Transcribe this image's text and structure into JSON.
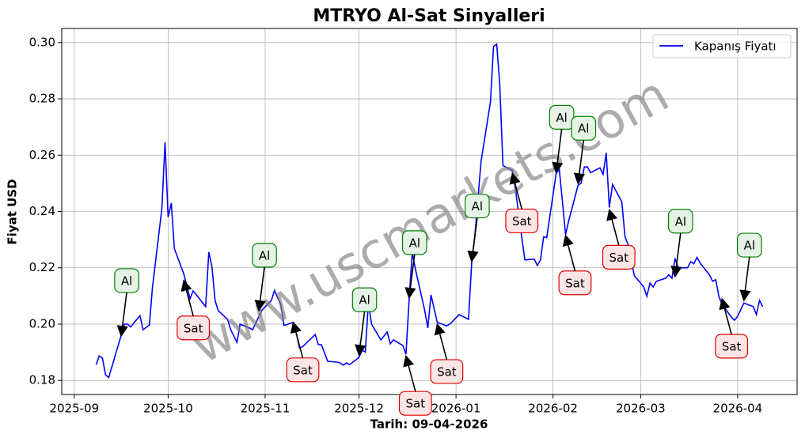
{
  "chart_data": {
    "type": "line",
    "title": "MTRYO Al-Sat Sinyalleri",
    "xlabel": "Tarih: 09-04-2026",
    "ylabel": "Fiyat USD",
    "watermark": "www.uscmarkets.com",
    "grid": true,
    "legend": "upper right",
    "xlim": [
      "2025-08-28",
      "2026-04-20"
    ],
    "ylim": [
      0.175,
      0.305
    ],
    "xticks": [
      {
        "value": "2025-09-01",
        "label": "2025-09"
      },
      {
        "value": "2025-10-01",
        "label": "2025-10"
      },
      {
        "value": "2025-11-01",
        "label": "2025-11"
      },
      {
        "value": "2025-12-01",
        "label": "2025-12"
      },
      {
        "value": "2026-01-01",
        "label": "2026-01"
      },
      {
        "value": "2026-02-01",
        "label": "2026-02"
      },
      {
        "value": "2026-03-01",
        "label": "2026-03"
      },
      {
        "value": "2026-04-01",
        "label": "2026-04"
      }
    ],
    "yticks": [
      0.18,
      {
        "value": 0.2,
        "label": "0.20"
      },
      0.22,
      0.24,
      0.26,
      0.28,
      {
        "value": 0.3,
        "label": "0.30"
      }
    ],
    "x": [
      "2025-09-08",
      "2025-09-09",
      "2025-09-10",
      "2025-09-11",
      "2025-09-12",
      "2025-09-16",
      "2025-09-17",
      "2025-09-18",
      "2025-09-19",
      "2025-09-22",
      "2025-09-23",
      "2025-09-25",
      "2025-09-26",
      "2025-09-29",
      "2025-09-30",
      "2025-10-01",
      "2025-10-02",
      "2025-10-03",
      "2025-10-06",
      "2025-10-07",
      "2025-10-08",
      "2025-10-09",
      "2025-10-10",
      "2025-10-13",
      "2025-10-14",
      "2025-10-15",
      "2025-10-16",
      "2025-10-17",
      "2025-10-20",
      "2025-10-21",
      "2025-10-23",
      "2025-10-24",
      "2025-10-27",
      "2025-10-28",
      "2025-10-31",
      "2025-11-03",
      "2025-11-04",
      "2025-11-05",
      "2025-11-06",
      "2025-11-07",
      "2025-11-10",
      "2025-11-11",
      "2025-11-12",
      "2025-11-13",
      "2025-11-17",
      "2025-11-18",
      "2025-11-19",
      "2025-11-21",
      "2025-11-24",
      "2025-11-25",
      "2025-11-26",
      "2025-11-27",
      "2025-11-28",
      "2025-12-01",
      "2025-12-02",
      "2025-12-03",
      "2025-12-04",
      "2025-12-05",
      "2025-12-08",
      "2025-12-09",
      "2025-12-10",
      "2025-12-11",
      "2025-12-12",
      "2025-12-15",
      "2025-12-16",
      "2025-12-17",
      "2025-12-18",
      "2025-12-19",
      "2025-12-22",
      "2025-12-23",
      "2025-12-24",
      "2025-12-26",
      "2025-12-29",
      "2025-12-30",
      "2026-01-02",
      "2026-01-05",
      "2026-01-06",
      "2026-01-07",
      "2026-01-09",
      "2026-01-12",
      "2026-01-13",
      "2026-01-14",
      "2026-01-15",
      "2026-01-16",
      "2026-01-19",
      "2026-01-20",
      "2026-01-22",
      "2026-01-23",
      "2026-01-26",
      "2026-01-27",
      "2026-01-28",
      "2026-01-29",
      "2026-01-30",
      "2026-02-02",
      "2026-02-03",
      "2026-02-04",
      "2026-02-05",
      "2026-02-06",
      "2026-02-09",
      "2026-02-10",
      "2026-02-11",
      "2026-02-12",
      "2026-02-13",
      "2026-02-16",
      "2026-02-17",
      "2026-02-18",
      "2026-02-19",
      "2026-02-20",
      "2026-02-23",
      "2026-02-24",
      "2026-02-25",
      "2026-02-27",
      "2026-03-02",
      "2026-03-03",
      "2026-03-04",
      "2026-03-05",
      "2026-03-06",
      "2026-03-09",
      "2026-03-10",
      "2026-03-11",
      "2026-03-12",
      "2026-03-13",
      "2026-03-16",
      "2026-03-17",
      "2026-03-18",
      "2026-03-19",
      "2026-03-20",
      "2026-03-23",
      "2026-03-24",
      "2026-03-25",
      "2026-03-26",
      "2026-03-27",
      "2026-03-30",
      "2026-03-31",
      "2026-04-01",
      "2026-04-03",
      "2026-04-06",
      "2026-04-07",
      "2026-04-08",
      "2026-04-09"
    ],
    "series": [
      {
        "name": "Kapanış Fiyatı",
        "color": "#0000ff",
        "values": [
          0.1856,
          0.1887,
          0.188,
          0.182,
          0.181,
          0.196,
          0.2,
          0.2,
          0.199,
          0.203,
          0.198,
          0.1997,
          0.213,
          0.241,
          0.2645,
          0.238,
          0.243,
          0.2268,
          0.2178,
          0.2135,
          0.209,
          0.2118,
          0.2104,
          0.2062,
          0.2256,
          0.2203,
          0.2084,
          0.2048,
          0.2017,
          0.198,
          0.1935,
          0.2,
          0.1986,
          0.198,
          0.205,
          0.2084,
          0.212,
          0.2093,
          0.207,
          0.1995,
          0.2006,
          0.1966,
          0.1915,
          0.192,
          0.1963,
          0.1927,
          0.1927,
          0.1868,
          0.1865,
          0.1862,
          0.1854,
          0.1862,
          0.1856,
          0.1882,
          0.1907,
          0.1901,
          0.2076,
          0.2,
          0.1944,
          0.1958,
          0.1972,
          0.193,
          0.1944,
          0.1924,
          0.1893,
          0.2084,
          0.2254,
          0.2197,
          0.2048,
          0.1986,
          0.2104,
          0.2006,
          0.1994,
          0.2,
          0.2034,
          0.2017,
          0.2217,
          0.231,
          0.2577,
          0.2789,
          0.2986,
          0.2994,
          0.2851,
          0.2563,
          0.2546,
          0.2479,
          0.231,
          0.2228,
          0.2231,
          0.2208,
          0.2228,
          0.231,
          0.2307,
          0.2535,
          0.2549,
          0.2437,
          0.2318,
          0.2366,
          0.2493,
          0.2501,
          0.2558,
          0.2558,
          0.2538,
          0.2555,
          0.2532,
          0.2608,
          0.2414,
          0.2496,
          0.2434,
          0.231,
          0.2282,
          0.2172,
          0.2132,
          0.2099,
          0.2146,
          0.2132,
          0.2152,
          0.2163,
          0.2175,
          0.2163,
          0.2234,
          0.22,
          0.22,
          0.2222,
          0.2214,
          0.2237,
          0.2217,
          0.2175,
          0.2152,
          0.2158,
          0.2099,
          0.207,
          0.2025,
          0.2014,
          0.2028,
          0.2075,
          0.2062,
          0.2034,
          0.2084,
          0.2062
        ]
      }
    ],
    "annotations": [
      {
        "text": "Al",
        "x": "2025-09-16",
        "y": 0.1958,
        "color": "#008000"
      },
      {
        "text": "Sat",
        "x": "2025-10-06",
        "y": 0.2155,
        "color": "#e00000"
      },
      {
        "text": "Al",
        "x": "2025-10-30",
        "y": 0.2048,
        "color": "#008000"
      },
      {
        "text": "Sat",
        "x": "2025-11-10",
        "y": 0.2006,
        "color": "#e00000"
      },
      {
        "text": "Al",
        "x": "2025-12-01",
        "y": 0.189,
        "color": "#008000"
      },
      {
        "text": "Sat",
        "x": "2025-12-16",
        "y": 0.1887,
        "color": "#e00000"
      },
      {
        "text": "Al",
        "x": "2025-12-17",
        "y": 0.2093,
        "color": "#008000"
      },
      {
        "text": "Sat",
        "x": "2025-12-26",
        "y": 0.2,
        "color": "#e00000"
      },
      {
        "text": "Al",
        "x": "2026-01-06",
        "y": 0.2223,
        "color": "#008000"
      },
      {
        "text": "Sat",
        "x": "2026-01-19",
        "y": 0.2535,
        "color": "#e00000"
      },
      {
        "text": "Al",
        "x": "2026-02-02",
        "y": 0.2538,
        "color": "#008000"
      },
      {
        "text": "Sat",
        "x": "2026-02-05",
        "y": 0.2315,
        "color": "#e00000"
      },
      {
        "text": "Al",
        "x": "2026-02-09",
        "y": 0.2499,
        "color": "#008000"
      },
      {
        "text": "Sat",
        "x": "2026-02-19",
        "y": 0.2406,
        "color": "#e00000"
      },
      {
        "text": "Al",
        "x": "2026-03-12",
        "y": 0.2169,
        "color": "#008000"
      },
      {
        "text": "Sat",
        "x": "2026-03-27",
        "y": 0.209,
        "color": "#e00000"
      },
      {
        "text": "Al",
        "x": "2026-04-03",
        "y": 0.2084,
        "color": "#008000"
      }
    ]
  }
}
